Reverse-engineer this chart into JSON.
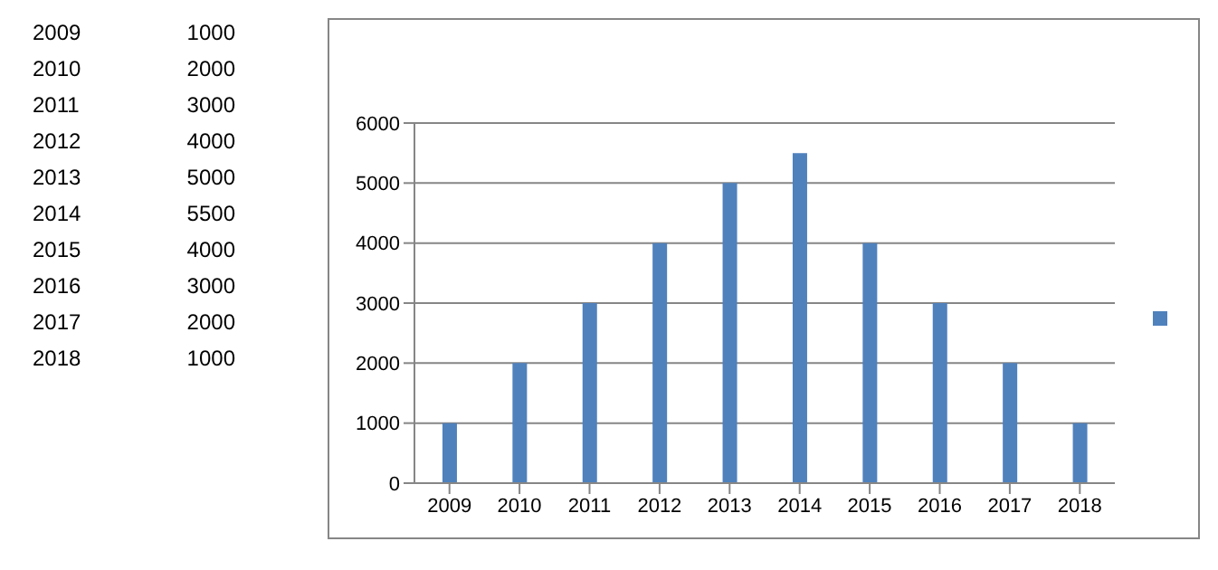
{
  "chart_data": {
    "type": "bar",
    "categories": [
      "2009",
      "2010",
      "2011",
      "2012",
      "2013",
      "2014",
      "2015",
      "2016",
      "2017",
      "2018"
    ],
    "values": [
      1000,
      2000,
      3000,
      4000,
      5000,
      5500,
      4000,
      3000,
      2000,
      1000
    ],
    "color": "#4f81bd",
    "ylim": [
      0,
      6000
    ],
    "yticks": [
      0,
      1000,
      2000,
      3000,
      4000,
      5000,
      6000
    ],
    "grid": "y",
    "annotations": [
      "2009",
      "1000",
      "2010",
      "2000",
      "2011",
      "3000",
      "2012",
      "4000",
      "2013",
      "5000",
      "2014",
      "5500",
      "2015",
      "4000",
      "2016",
      "3000",
      "2017",
      "2000",
      "2018",
      "1000"
    ]
  }
}
